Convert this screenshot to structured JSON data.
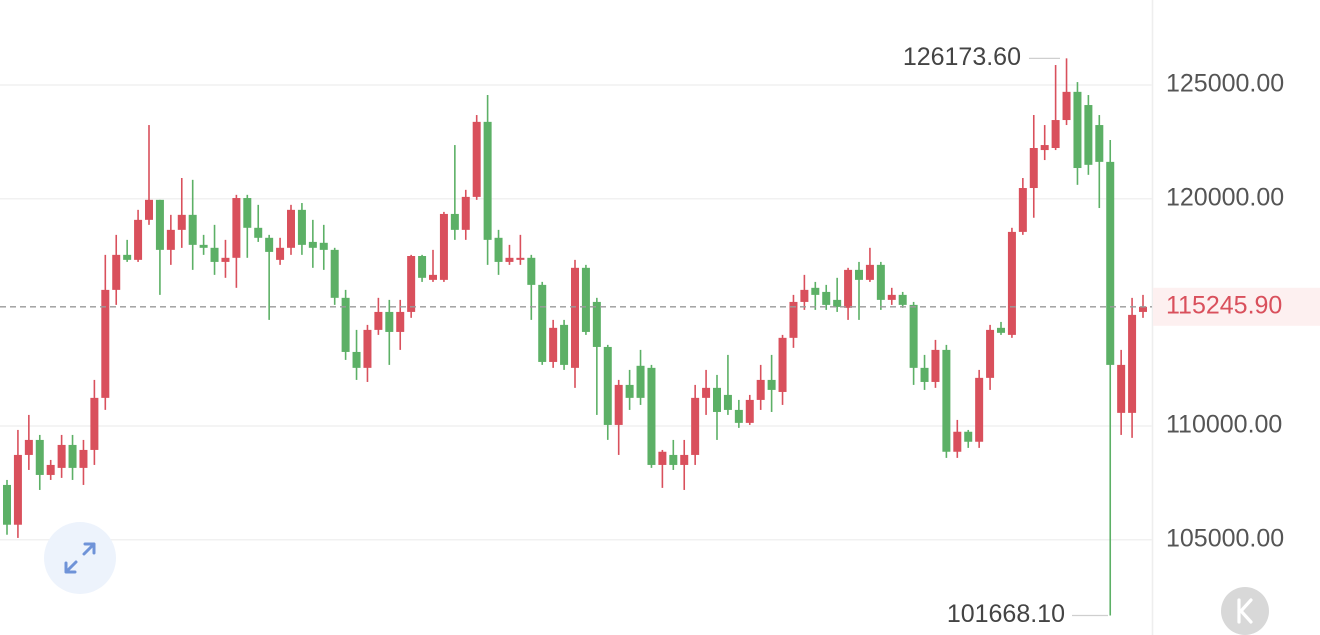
{
  "chart_data": {
    "type": "candlestick",
    "ylim": [
      100810,
      128740
    ],
    "yticks": [
      {
        "value": 125000,
        "label": "125000.00"
      },
      {
        "value": 120000,
        "label": "120000.00"
      },
      {
        "value": 110000,
        "label": "110000.00"
      },
      {
        "value": 105000,
        "label": "105000.00"
      }
    ],
    "grid": true,
    "up_color": "#d9505c",
    "down_color": "#5cb066",
    "current_price": {
      "value": 115245.9,
      "label": "115245.90"
    },
    "high_marker": {
      "value": 126173.6,
      "label": "126173.60"
    },
    "low_marker": {
      "value": 101668.1,
      "label": "101668.10"
    },
    "candles": [
      [
        107410,
        107630,
        105220,
        105660
      ],
      [
        105660,
        109830,
        105080,
        108730
      ],
      [
        108730,
        110490,
        108070,
        109390
      ],
      [
        109390,
        109610,
        107190,
        107850
      ],
      [
        107850,
        108510,
        107630,
        108290
      ],
      [
        108160,
        109610,
        107720,
        109170
      ],
      [
        109170,
        109610,
        107630,
        108160
      ],
      [
        108160,
        109390,
        107410,
        108950
      ],
      [
        108950,
        112030,
        108290,
        111240
      ],
      [
        111240,
        117530,
        110710,
        115990
      ],
      [
        115990,
        118410,
        115330,
        117530
      ],
      [
        117530,
        118190,
        117220,
        117310
      ],
      [
        117310,
        119510,
        117220,
        119070
      ],
      [
        119070,
        123240,
        118850,
        119950
      ],
      [
        119950,
        119950,
        115770,
        117750
      ],
      [
        117750,
        119290,
        117090,
        118630
      ],
      [
        118630,
        120910,
        117840,
        119290
      ],
      [
        119290,
        120830,
        116870,
        117970
      ],
      [
        117970,
        118410,
        117530,
        117840
      ],
      [
        117840,
        118850,
        116650,
        117220
      ],
      [
        117220,
        118190,
        116520,
        117400
      ],
      [
        117400,
        120170,
        116080,
        120030
      ],
      [
        120030,
        120170,
        117400,
        118720
      ],
      [
        118720,
        119730,
        118100,
        118280
      ],
      [
        118280,
        118410,
        114670,
        117660
      ],
      [
        117310,
        118280,
        117090,
        117840
      ],
      [
        117840,
        119730,
        117530,
        119510
      ],
      [
        119510,
        119810,
        117530,
        117970
      ],
      [
        118100,
        119070,
        116960,
        117840
      ],
      [
        118060,
        118850,
        116870,
        117750
      ],
      [
        117750,
        117840,
        115330,
        115640
      ],
      [
        115640,
        115990,
        112910,
        113260
      ],
      [
        113260,
        114230,
        112030,
        112560
      ],
      [
        112560,
        114450,
        111940,
        114230
      ],
      [
        114230,
        115640,
        114010,
        115020
      ],
      [
        115020,
        115550,
        112690,
        114140
      ],
      [
        114140,
        115550,
        113350,
        115020
      ],
      [
        115020,
        117530,
        114760,
        117480
      ],
      [
        117480,
        117530,
        116340,
        116520
      ],
      [
        116430,
        117750,
        116340,
        116650
      ],
      [
        116430,
        119420,
        116340,
        119330
      ],
      [
        119330,
        122360,
        118190,
        118630
      ],
      [
        118630,
        120390,
        118190,
        120080
      ],
      [
        120080,
        123680,
        119950,
        123380
      ],
      [
        123380,
        124560,
        117090,
        118190
      ],
      [
        118280,
        118630,
        116650,
        117220
      ],
      [
        117220,
        117970,
        117090,
        117400
      ],
      [
        117310,
        118410,
        117090,
        117400
      ],
      [
        117400,
        117530,
        114670,
        116210
      ],
      [
        116210,
        116340,
        112690,
        112820
      ],
      [
        112820,
        114670,
        112560,
        114320
      ],
      [
        114450,
        114670,
        112470,
        112690
      ],
      [
        112560,
        117310,
        111680,
        116960
      ],
      [
        116960,
        117090,
        114010,
        114140
      ],
      [
        115460,
        115640,
        110490,
        113480
      ],
      [
        113480,
        113570,
        109390,
        110050
      ],
      [
        110050,
        112030,
        108730,
        111810
      ],
      [
        111810,
        112470,
        110710,
        111240
      ],
      [
        112650,
        113350,
        110930,
        111240
      ],
      [
        112560,
        112690,
        108160,
        108290
      ],
      [
        108290,
        108950,
        107280,
        108870
      ],
      [
        108730,
        109390,
        108070,
        108290
      ],
      [
        108290,
        109390,
        107190,
        108730
      ],
      [
        108730,
        111810,
        108290,
        111240
      ],
      [
        111240,
        112470,
        110490,
        111680
      ],
      [
        111680,
        112250,
        109390,
        110620
      ],
      [
        111370,
        113130,
        110490,
        110710
      ],
      [
        110710,
        111150,
        109920,
        110140
      ],
      [
        110140,
        111370,
        110050,
        111150
      ],
      [
        111150,
        112690,
        110710,
        112030
      ],
      [
        112030,
        113130,
        110620,
        111590
      ],
      [
        111500,
        114010,
        110930,
        113880
      ],
      [
        113880,
        115770,
        113440,
        115460
      ],
      [
        115460,
        116650,
        115110,
        115990
      ],
      [
        116080,
        116340,
        115110,
        115770
      ],
      [
        115900,
        116210,
        115110,
        115330
      ],
      [
        115550,
        116520,
        115020,
        115240
      ],
      [
        115200,
        116960,
        114670,
        116870
      ],
      [
        116870,
        117220,
        114670,
        116430
      ],
      [
        116430,
        117840,
        116340,
        117090
      ],
      [
        117090,
        117220,
        115110,
        115550
      ],
      [
        115550,
        116080,
        115330,
        115770
      ],
      [
        115770,
        115900,
        115200,
        115330
      ],
      [
        115330,
        115460,
        111810,
        112560
      ],
      [
        112560,
        113130,
        111590,
        111940
      ],
      [
        111940,
        113790,
        111680,
        113350
      ],
      [
        113350,
        113570,
        108600,
        108870
      ],
      [
        108870,
        110270,
        108600,
        109750
      ],
      [
        109750,
        109830,
        109040,
        109310
      ],
      [
        109310,
        112470,
        109040,
        112120
      ],
      [
        112120,
        114450,
        111590,
        114230
      ],
      [
        114320,
        114580,
        114010,
        114100
      ],
      [
        114010,
        118720,
        113880,
        118540
      ],
      [
        118540,
        120910,
        118410,
        120470
      ],
      [
        120470,
        123680,
        119160,
        122230
      ],
      [
        122140,
        123240,
        121700,
        122360
      ],
      [
        122230,
        125880,
        122140,
        123460
      ],
      [
        123460,
        126173.6,
        123240,
        124700
      ],
      [
        124700,
        125130,
        120610,
        121350
      ],
      [
        124120,
        124560,
        121050,
        121490
      ],
      [
        123240,
        123680,
        119590,
        121620
      ],
      [
        121620,
        122580,
        101668.1,
        112690
      ],
      [
        110580,
        113350,
        109610,
        112690
      ],
      [
        110580,
        115640,
        109480,
        114890
      ],
      [
        115020,
        115770,
        114760,
        115245.9
      ]
    ]
  }
}
